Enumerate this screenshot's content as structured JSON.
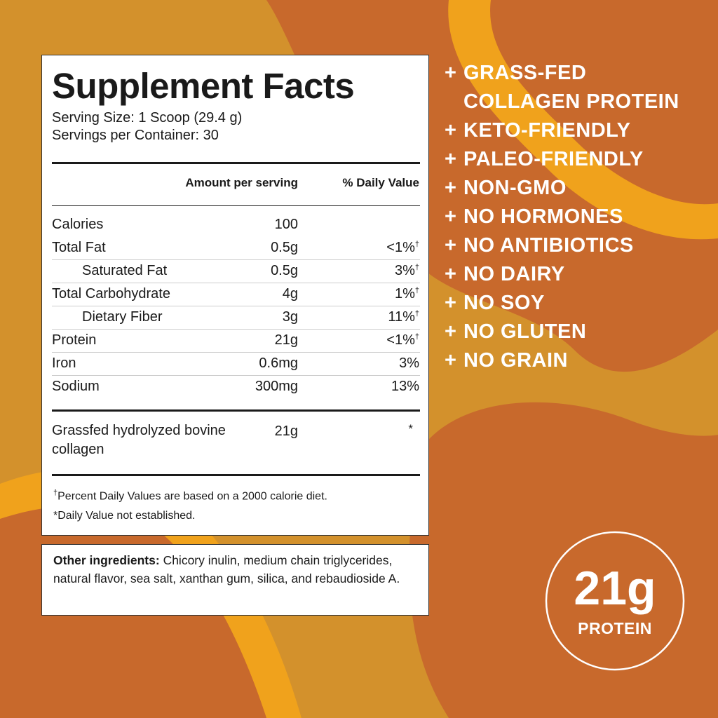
{
  "facts": {
    "title": "Supplement Facts",
    "serving_size": "Serving Size: 1 Scoop (29.4 g)",
    "servings": "Servings per Container: 30",
    "header": {
      "amount": "Amount per serving",
      "dv": "% Daily Value"
    },
    "dagger": "†",
    "rows": [
      {
        "name": "Calories",
        "amount": "100"
      },
      {
        "name": "Total Fat",
        "amount": "0.5g",
        "dv": "<1%",
        "note": "†"
      },
      {
        "name": "Saturated Fat",
        "amount": "0.5g",
        "dv": "3%",
        "note": "†",
        "indent": true
      },
      {
        "name": "Total Carbohydrate",
        "amount": "4g",
        "dv": "1%",
        "note": "†"
      },
      {
        "name": "Dietary Fiber",
        "amount": "3g",
        "dv": "11%",
        "note": "†",
        "indent": true
      },
      {
        "name": "Protein",
        "amount": "21g",
        "dv": "<1%",
        "note": "†"
      },
      {
        "name": "Iron",
        "amount": "0.6mg",
        "dv": "3%"
      },
      {
        "name": "Sodium",
        "amount": "300mg",
        "dv": "13%"
      }
    ],
    "collagen": {
      "name": "Grassfed hydrolyzed bovine collagen",
      "amount": "21g",
      "dv": "*"
    },
    "footnotes": [
      "Percent Daily Values are based on a 2000 calorie diet.",
      "*Daily Value not established."
    ]
  },
  "ingredients": {
    "label": "Other ingredients:",
    "text": "Chicory inulin, medium chain triglycerides, natural flavor, sea salt, xanthan gum, silica, and rebaudioside A."
  },
  "claims": {
    "bullet": "+",
    "items": [
      "GRASS-FED COLLAGEN PROTEIN",
      "KETO-FRIENDLY",
      "PALEO-FRIENDLY",
      "NON-GMO",
      "NO HORMONES",
      "NO ANTIBIOTICS",
      "NO DAIRY",
      "NO SOY",
      "NO GLUTEN",
      "NO GRAIN"
    ]
  },
  "badge": {
    "amount": "21g",
    "label": "PROTEIN"
  }
}
